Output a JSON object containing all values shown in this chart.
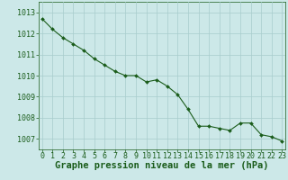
{
  "x": [
    0,
    1,
    2,
    3,
    4,
    5,
    6,
    7,
    8,
    9,
    10,
    11,
    12,
    13,
    14,
    15,
    16,
    17,
    18,
    19,
    20,
    21,
    22,
    23
  ],
  "y": [
    1012.7,
    1012.2,
    1011.8,
    1011.5,
    1011.2,
    1010.8,
    1010.5,
    1010.2,
    1010.0,
    1010.0,
    1009.7,
    1009.8,
    1009.5,
    1009.1,
    1008.4,
    1007.6,
    1007.6,
    1007.5,
    1007.4,
    1007.75,
    1007.75,
    1007.2,
    1007.1,
    1006.9
  ],
  "ylim": [
    1006.5,
    1013.5
  ],
  "yticks": [
    1007,
    1008,
    1009,
    1010,
    1011,
    1012,
    1013
  ],
  "xticks": [
    0,
    1,
    2,
    3,
    4,
    5,
    6,
    7,
    8,
    9,
    10,
    11,
    12,
    13,
    14,
    15,
    16,
    17,
    18,
    19,
    20,
    21,
    22,
    23
  ],
  "line_color": "#1a5c1a",
  "marker_color": "#1a5c1a",
  "bg_color": "#cce8e8",
  "grid_color": "#a8cccc",
  "xlabel": "Graphe pression niveau de la mer (hPa)",
  "xlabel_color": "#1a5c1a",
  "tick_color": "#1a5c1a",
  "spine_color": "#1a5c1a",
  "label_fontsize": 7.0,
  "tick_fontsize": 6.0,
  "xlabel_fontsize": 7.5
}
